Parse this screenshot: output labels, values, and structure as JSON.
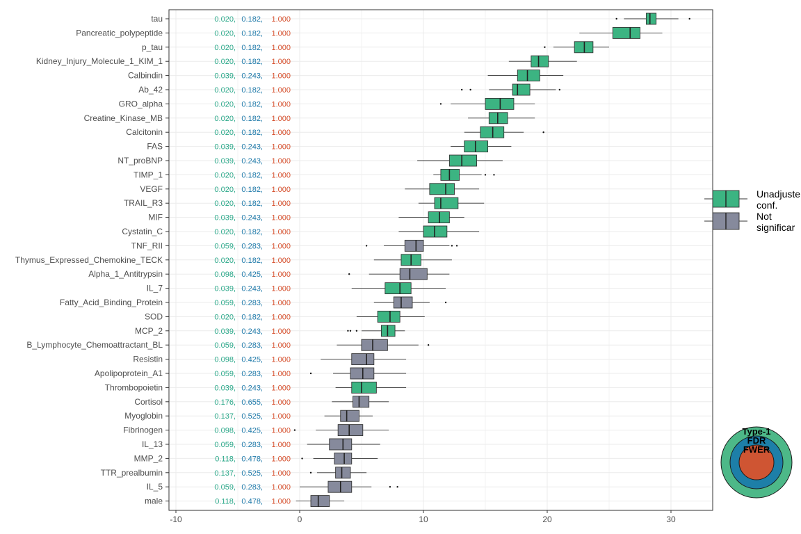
{
  "chart_data": {
    "type": "boxplot",
    "orientation": "horizontal",
    "title": "",
    "xlabel": "",
    "ylabel": "",
    "xlim": [
      -10.5,
      33.3
    ],
    "x_ticks": [
      -10,
      0,
      10,
      20,
      30
    ],
    "grid": true,
    "colors": {
      "significant": "#3cb482",
      "not_significant": "#868a9c",
      "p_unadjusted": "#2aa889",
      "p_fdr": "#1f7aaa",
      "p_fwer": "#d64e2b",
      "ring_type1": "#4db888",
      "ring_fdr": "#1d7fa8",
      "ring_fwer": "#cf5533"
    },
    "legend": {
      "placement": "right",
      "entries": [
        {
          "label": "Unadjuste",
          "label2": "conf.",
          "color": "#3cb482"
        },
        {
          "label": "Not",
          "label2": "significar",
          "color": "#868a9c"
        }
      ]
    },
    "inset": {
      "placement": "bottom-right",
      "labels": [
        "Type-1",
        "FDR",
        "FWER"
      ]
    },
    "rows": [
      {
        "name": "tau",
        "p": [
          "0.020,",
          "0.182,",
          "1.000"
        ],
        "sig": true,
        "box": [
          26.2,
          28.0,
          28.3,
          28.8,
          30.6
        ],
        "outliers": [
          25.6,
          31.5
        ]
      },
      {
        "name": "Pancreatic_polypeptide",
        "p": [
          "0.020,",
          "0.182,",
          "1.000"
        ],
        "sig": true,
        "box": [
          22.6,
          25.3,
          26.7,
          27.5,
          29.3
        ],
        "outliers": []
      },
      {
        "name": "p_tau",
        "p": [
          "0.020,",
          "0.182,",
          "1.000"
        ],
        "sig": true,
        "box": [
          20.5,
          22.2,
          23.0,
          23.7,
          25.0
        ],
        "outliers": [
          19.8
        ]
      },
      {
        "name": "Kidney_Injury_Molecule_1_KIM_1",
        "p": [
          "0.020,",
          "0.182,",
          "1.000"
        ],
        "sig": true,
        "box": [
          16.9,
          18.7,
          19.3,
          20.1,
          22.4
        ],
        "outliers": []
      },
      {
        "name": "Calbindin",
        "p": [
          "0.039,",
          "0.243,",
          "1.000"
        ],
        "sig": true,
        "box": [
          15.2,
          17.6,
          18.4,
          19.4,
          21.3
        ],
        "outliers": []
      },
      {
        "name": "Ab_42",
        "p": [
          "0.020,",
          "0.182,",
          "1.000"
        ],
        "sig": true,
        "box": [
          15.3,
          17.2,
          17.6,
          18.6,
          20.7
        ],
        "outliers": [
          13.1,
          13.8,
          21.0
        ]
      },
      {
        "name": "GRO_alpha",
        "p": [
          "0.020,",
          "0.182,",
          "1.000"
        ],
        "sig": true,
        "box": [
          12.2,
          15.0,
          16.2,
          17.3,
          19.0
        ],
        "outliers": [
          11.4
        ]
      },
      {
        "name": "Creatine_Kinase_MB",
        "p": [
          "0.020,",
          "0.182,",
          "1.000"
        ],
        "sig": true,
        "box": [
          13.6,
          15.3,
          16.0,
          16.8,
          19.0
        ],
        "outliers": []
      },
      {
        "name": "Calcitonin",
        "p": [
          "0.020,",
          "0.182,",
          "1.000"
        ],
        "sig": true,
        "box": [
          13.3,
          14.6,
          15.6,
          16.5,
          18.1
        ],
        "outliers": [
          19.7
        ]
      },
      {
        "name": "FAS",
        "p": [
          "0.039,",
          "0.243,",
          "1.000"
        ],
        "sig": true,
        "box": [
          12.2,
          13.3,
          14.2,
          15.2,
          17.1
        ],
        "outliers": []
      },
      {
        "name": "NT_proBNP",
        "p": [
          "0.039,",
          "0.243,",
          "1.000"
        ],
        "sig": true,
        "box": [
          9.5,
          12.1,
          13.1,
          14.3,
          16.4
        ],
        "outliers": []
      },
      {
        "name": "TIMP_1",
        "p": [
          "0.020,",
          "0.182,",
          "1.000"
        ],
        "sig": true,
        "box": [
          10.8,
          11.4,
          12.1,
          12.9,
          14.7
        ],
        "outliers": [
          15.0,
          15.7
        ]
      },
      {
        "name": "VEGF",
        "p": [
          "0.020,",
          "0.182,",
          "1.000"
        ],
        "sig": true,
        "box": [
          8.5,
          10.5,
          11.8,
          12.5,
          14.5
        ],
        "outliers": []
      },
      {
        "name": "TRAIL_R3",
        "p": [
          "0.020,",
          "0.182,",
          "1.000"
        ],
        "sig": true,
        "box": [
          9.6,
          10.9,
          11.4,
          12.8,
          14.9
        ],
        "outliers": []
      },
      {
        "name": "MIF",
        "p": [
          "0.039,",
          "0.243,",
          "1.000"
        ],
        "sig": true,
        "box": [
          8.0,
          10.4,
          11.3,
          12.1,
          13.3
        ],
        "outliers": []
      },
      {
        "name": "Cystatin_C",
        "p": [
          "0.020,",
          "0.182,",
          "1.000"
        ],
        "sig": true,
        "box": [
          8.0,
          10.0,
          10.9,
          11.9,
          14.5
        ],
        "outliers": []
      },
      {
        "name": "TNF_RII",
        "p": [
          "0.059,",
          "0.283,",
          "1.000"
        ],
        "sig": false,
        "box": [
          6.8,
          8.5,
          9.4,
          10.0,
          12.1
        ],
        "outliers": [
          5.4,
          12.3,
          12.7
        ]
      },
      {
        "name": "Thymus_Expressed_Chemokine_TECK",
        "p": [
          "0.020,",
          "0.182,",
          "1.000"
        ],
        "sig": true,
        "box": [
          6.0,
          8.2,
          9.0,
          9.8,
          12.3
        ],
        "outliers": []
      },
      {
        "name": "Alpha_1_Antitrypsin",
        "p": [
          "0.098,",
          "0.425,",
          "1.000"
        ],
        "sig": false,
        "box": [
          5.6,
          8.1,
          8.9,
          10.3,
          12.1
        ],
        "outliers": [
          4.0
        ]
      },
      {
        "name": "IL_7",
        "p": [
          "0.039,",
          "0.243,",
          "1.000"
        ],
        "sig": true,
        "box": [
          4.2,
          6.9,
          8.1,
          9.0,
          11.8
        ],
        "outliers": []
      },
      {
        "name": "Fatty_Acid_Binding_Protein",
        "p": [
          "0.059,",
          "0.283,",
          "1.000"
        ],
        "sig": false,
        "box": [
          6.0,
          7.6,
          8.2,
          9.1,
          10.5
        ],
        "outliers": [
          11.8
        ]
      },
      {
        "name": "SOD",
        "p": [
          "0.020,",
          "0.182,",
          "1.000"
        ],
        "sig": true,
        "box": [
          4.6,
          6.3,
          7.3,
          8.1,
          10.1
        ],
        "outliers": []
      },
      {
        "name": "MCP_2",
        "p": [
          "0.039,",
          "0.243,",
          "1.000"
        ],
        "sig": true,
        "box": [
          5.0,
          6.6,
          7.1,
          7.7,
          8.5
        ],
        "outliers": [
          3.9,
          4.1,
          4.6
        ]
      },
      {
        "name": "B_Lymphocyte_Chemoattractant_BL",
        "p": [
          "0.059,",
          "0.283,",
          "1.000"
        ],
        "sig": false,
        "box": [
          3.0,
          5.0,
          5.9,
          7.1,
          9.6
        ],
        "outliers": [
          10.4
        ]
      },
      {
        "name": "Resistin",
        "p": [
          "0.098,",
          "0.425,",
          "1.000"
        ],
        "sig": false,
        "box": [
          1.7,
          4.2,
          5.4,
          6.0,
          8.6
        ],
        "outliers": []
      },
      {
        "name": "Apolipoprotein_A1",
        "p": [
          "0.059,",
          "0.283,",
          "1.000"
        ],
        "sig": false,
        "box": [
          2.7,
          4.1,
          5.1,
          6.0,
          8.6
        ],
        "outliers": [
          0.9
        ]
      },
      {
        "name": "Thrombopoietin",
        "p": [
          "0.039,",
          "0.243,",
          "1.000"
        ],
        "sig": true,
        "box": [
          2.9,
          4.2,
          5.0,
          6.2,
          8.6
        ],
        "outliers": []
      },
      {
        "name": "Cortisol",
        "p": [
          "0.176,",
          "0.655,",
          "1.000"
        ],
        "sig": false,
        "box": [
          2.6,
          4.3,
          4.8,
          5.6,
          7.2
        ],
        "outliers": []
      },
      {
        "name": "Myoglobin",
        "p": [
          "0.137,",
          "0.525,",
          "1.000"
        ],
        "sig": false,
        "box": [
          2.0,
          3.3,
          3.8,
          4.8,
          5.9
        ],
        "outliers": []
      },
      {
        "name": "Fibrinogen",
        "p": [
          "0.098,",
          "0.425,",
          "1.000"
        ],
        "sig": false,
        "box": [
          1.3,
          3.1,
          4.0,
          5.1,
          7.2
        ],
        "outliers": [
          -0.4
        ]
      },
      {
        "name": "IL_13",
        "p": [
          "0.059,",
          "0.283,",
          "1.000"
        ],
        "sig": false,
        "box": [
          0.6,
          2.4,
          3.5,
          4.2,
          6.5
        ],
        "outliers": []
      },
      {
        "name": "MMP_2",
        "p": [
          "0.118,",
          "0.478,",
          "1.000"
        ],
        "sig": false,
        "box": [
          1.1,
          2.8,
          3.6,
          4.2,
          6.3
        ],
        "outliers": [
          0.2
        ]
      },
      {
        "name": "TTR_prealbumin",
        "p": [
          "0.137,",
          "0.525,",
          "1.000"
        ],
        "sig": false,
        "box": [
          1.4,
          2.9,
          3.4,
          4.1,
          5.4
        ],
        "outliers": [
          0.9
        ]
      },
      {
        "name": "IL_5",
        "p": [
          "0.059,",
          "0.283,",
          "1.000"
        ],
        "sig": false,
        "box": [
          0.0,
          2.3,
          3.3,
          4.2,
          5.8
        ],
        "outliers": [
          7.3,
          7.9
        ]
      },
      {
        "name": "male",
        "p": [
          "0.118,",
          "0.478,",
          "1.000"
        ],
        "sig": false,
        "box": [
          -0.3,
          0.9,
          1.5,
          2.4,
          3.6
        ],
        "outliers": []
      }
    ]
  }
}
